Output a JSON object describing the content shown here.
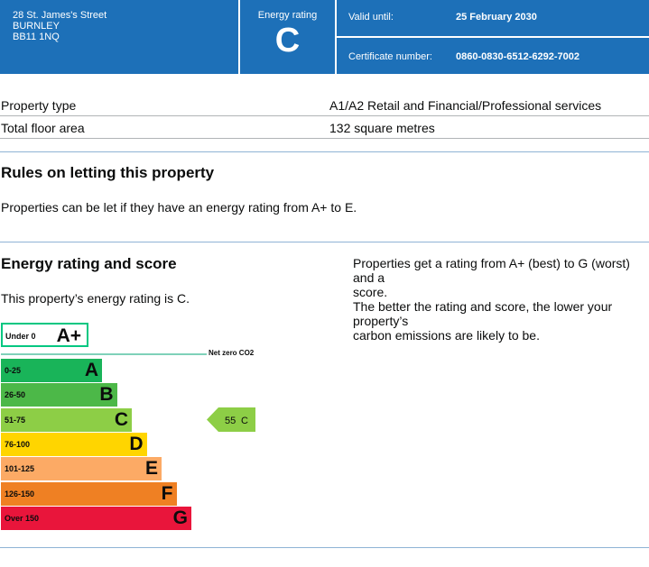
{
  "header": {
    "address_line1": "28 St. James's Street",
    "address_line2": "BURNLEY",
    "address_line3": "BB11 1NQ",
    "energy_rating_label": "Energy rating",
    "energy_rating_letter": "C",
    "valid_until_label": "Valid until:",
    "valid_until_value": "25 February 2030",
    "certificate_label": "Certificate number:",
    "certificate_value": "0860-0830-6512-6292-7002"
  },
  "property": {
    "type_label": "Property type",
    "type_value": "A1/A2 Retail and Financial/Professional services",
    "area_label": "Total floor area",
    "area_value": "132 square metres"
  },
  "letting": {
    "heading": "Rules on letting this property",
    "text": "Properties can be let if they have an energy rating from A+ to E."
  },
  "energy": {
    "heading": "Energy rating and score",
    "rating_text": "This property’s energy rating is C.",
    "info1_line1": "Properties get a rating from A+ (best) to G (worst) and a",
    "info1_line2": "score.",
    "info2_line1": "The better the rating and score, the lower your property’s",
    "info2_line2": "carbon emissions are likely to be."
  },
  "chart_data": {
    "type": "bar",
    "aplus": {
      "range": "Under 0",
      "letter": "A+",
      "color": "#00c781"
    },
    "net_zero_label": "Net zero CO2",
    "bands": [
      {
        "range": "0-25",
        "letter": "A",
        "color": "#19b459"
      },
      {
        "range": "26-50",
        "letter": "B",
        "color": "#4cb848"
      },
      {
        "range": "51-75",
        "letter": "C",
        "color": "#8dce46"
      },
      {
        "range": "76-100",
        "letter": "D",
        "color": "#ffd500"
      },
      {
        "range": "101-125",
        "letter": "E",
        "color": "#fcaa65"
      },
      {
        "range": "126-150",
        "letter": "F",
        "color": "#ef8023"
      },
      {
        "range": "Over 150",
        "letter": "G",
        "color": "#e9153b"
      }
    ],
    "current": {
      "score": "55",
      "letter": "C",
      "band_index": 2,
      "color": "#8dce46"
    }
  }
}
